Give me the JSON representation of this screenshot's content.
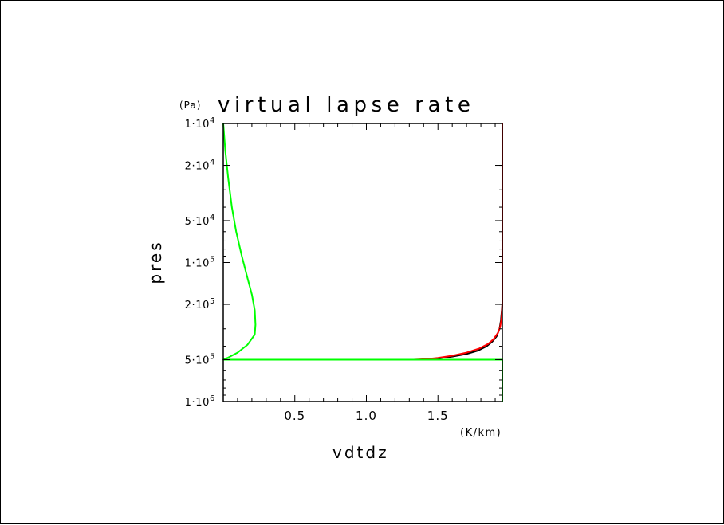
{
  "chart_data": {
    "type": "line",
    "title": "virtual lapse rate",
    "y_unit": "(Pa)",
    "xlabel": "vdtdz",
    "x_unit": "(K/km)",
    "ylabel": "pres",
    "xlim": [
      0.0,
      1.95
    ],
    "ylim": [
      1000000,
      10000
    ],
    "y_scale": "log",
    "y_reversed": true,
    "x_ticks": [
      "0.5",
      "1.0",
      "1.5"
    ],
    "x_tick_values": [
      0.5,
      1.0,
      1.5
    ],
    "y_ticks": [
      {
        "coef": "1·10",
        "exp": "4",
        "value": 10000
      },
      {
        "coef": "2·10",
        "exp": "4",
        "value": 20000
      },
      {
        "coef": "5·10",
        "exp": "4",
        "value": 50000
      },
      {
        "coef": "1·10",
        "exp": "5",
        "value": 100000
      },
      {
        "coef": "2·10",
        "exp": "5",
        "value": 200000
      },
      {
        "coef": "5·10",
        "exp": "5",
        "value": 500000
      },
      {
        "coef": "1·10",
        "exp": "6",
        "value": 1000000
      }
    ],
    "series": [
      {
        "color": "#000000",
        "points": [
          [
            1.95,
            10000
          ],
          [
            1.95,
            60000
          ],
          [
            1.95,
            200000
          ],
          [
            1.94,
            260000
          ],
          [
            1.93,
            300000
          ],
          [
            1.91,
            340000
          ],
          [
            1.88,
            370000
          ],
          [
            1.84,
            400000
          ],
          [
            1.78,
            430000
          ],
          [
            1.7,
            455000
          ],
          [
            1.6,
            475000
          ],
          [
            1.5,
            490000
          ],
          [
            1.42,
            498000
          ],
          [
            1.38,
            500000
          ],
          [
            1.95,
            500000
          ],
          [
            1.95,
            1000000
          ]
        ]
      },
      {
        "color": "#ff0000",
        "points": [
          [
            1.95,
            10000
          ],
          [
            1.95,
            60000
          ],
          [
            1.95,
            200000
          ],
          [
            1.945,
            250000
          ],
          [
            1.935,
            290000
          ],
          [
            1.92,
            320000
          ],
          [
            1.89,
            355000
          ],
          [
            1.85,
            385000
          ],
          [
            1.79,
            415000
          ],
          [
            1.7,
            445000
          ],
          [
            1.6,
            468000
          ],
          [
            1.5,
            485000
          ],
          [
            1.42,
            495000
          ],
          [
            1.33,
            500000
          ],
          [
            1.95,
            500000
          ]
        ]
      },
      {
        "color": "#00ff00",
        "points": [
          [
            0.0,
            10000
          ],
          [
            0.015,
            16000
          ],
          [
            0.035,
            25000
          ],
          [
            0.06,
            40000
          ],
          [
            0.09,
            60000
          ],
          [
            0.13,
            90000
          ],
          [
            0.17,
            130000
          ],
          [
            0.2,
            170000
          ],
          [
            0.22,
            220000
          ],
          [
            0.225,
            280000
          ],
          [
            0.22,
            330000
          ],
          [
            0.17,
            390000
          ],
          [
            0.1,
            445000
          ],
          [
            0.03,
            485000
          ],
          [
            0.0,
            500000
          ],
          [
            1.95,
            500000
          ],
          [
            1.95,
            1000000
          ]
        ]
      }
    ]
  }
}
